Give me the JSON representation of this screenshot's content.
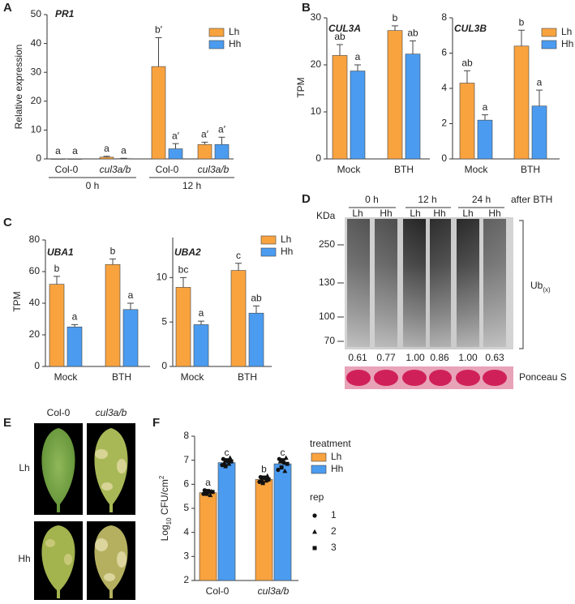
{
  "panels": [
    "A",
    "B",
    "C",
    "D",
    "E",
    "F"
  ],
  "chart_data": [
    {
      "type": "bar",
      "title": "PR1",
      "ylabel": [
        "Relative expression"
      ],
      "ylim": [
        0,
        50
      ],
      "yticks": [
        0,
        10,
        20,
        30,
        40,
        50
      ],
      "categories": [
        "Col-0",
        "cul3a/b",
        "Col-0",
        "cul3a/b"
      ],
      "group_labels": [
        "0 h",
        "12 h"
      ],
      "legend": true,
      "series": [
        {
          "name": "Lh",
          "color": "#f9a33f",
          "values": [
            0,
            0.6,
            32,
            5
          ],
          "errors": [
            0,
            0.3,
            10,
            0.8
          ],
          "letters": [
            "a",
            "a",
            "b′",
            "a′"
          ]
        },
        {
          "name": "Hh",
          "color": "#4b9cf0",
          "values": [
            0,
            0.1,
            3.5,
            5
          ],
          "errors": [
            0,
            0.1,
            1.8,
            2.5
          ],
          "letters": [
            "a",
            "a",
            "a′",
            "a′"
          ]
        }
      ]
    },
    {
      "type": "bar",
      "title": "CUL3A",
      "ylabel": [
        "TPM"
      ],
      "ylim": [
        0,
        30
      ],
      "yticks": [
        0,
        10,
        20,
        30
      ],
      "categories": [
        "Mock",
        "BTH"
      ],
      "legend": false,
      "series": [
        {
          "name": "Lh",
          "color": "#f9a33f",
          "values": [
            22,
            27.3
          ],
          "errors": [
            2.3,
            1
          ],
          "letters": [
            "ab",
            "b"
          ]
        },
        {
          "name": "Hh",
          "color": "#4b9cf0",
          "values": [
            18.7,
            22.3
          ],
          "errors": [
            1.3,
            2.8
          ],
          "letters": [
            "a",
            "ab"
          ]
        }
      ]
    },
    {
      "type": "bar",
      "title": "CUL3B",
      "ylim": [
        0,
        8
      ],
      "yticks": [
        0,
        2,
        4,
        6,
        8
      ],
      "categories": [
        "Mock",
        "BTH"
      ],
      "legend": true,
      "series": [
        {
          "name": "Lh",
          "color": "#f9a33f",
          "values": [
            4.3,
            6.4
          ],
          "errors": [
            0.7,
            0.9
          ],
          "letters": [
            "ab",
            "b"
          ]
        },
        {
          "name": "Hh",
          "color": "#4b9cf0",
          "values": [
            2.2,
            3
          ],
          "errors": [
            0.3,
            0.9
          ],
          "letters": [
            "a",
            "a"
          ]
        }
      ]
    },
    {
      "type": "bar",
      "title": "UBA1",
      "ylabel": [
        "TPM"
      ],
      "ylim": [
        0,
        80
      ],
      "yticks": [
        0,
        20,
        40,
        60,
        80
      ],
      "categories": [
        "Mock",
        "BTH"
      ],
      "legend": false,
      "series": [
        {
          "name": "Lh",
          "color": "#f9a33f",
          "values": [
            52,
            64.5
          ],
          "errors": [
            5,
            3.5
          ],
          "letters": [
            "b",
            "b"
          ]
        },
        {
          "name": "Hh",
          "color": "#4b9cf0",
          "values": [
            25,
            36
          ],
          "errors": [
            1.5,
            4
          ],
          "letters": [
            "a",
            "a"
          ]
        }
      ]
    },
    {
      "type": "bar",
      "title": "UBA2",
      "ylim": [
        0,
        14.5
      ],
      "yticks": [
        0,
        5,
        10
      ],
      "categories": [
        "Mock",
        "BTH"
      ],
      "legend": true,
      "series": [
        {
          "name": "Lh",
          "color": "#f9a33f",
          "values": [
            8.9,
            10.8
          ],
          "errors": [
            1.1,
            0.8
          ],
          "letters": [
            "bc",
            "c"
          ]
        },
        {
          "name": "Hh",
          "color": "#4b9cf0",
          "values": [
            4.7,
            6
          ],
          "errors": [
            0.4,
            0.8
          ],
          "letters": [
            "a",
            "ab"
          ]
        }
      ]
    },
    {
      "type": "bar",
      "ylabel": [
        "Log",
        "10",
        " CFU/cm",
        "2"
      ],
      "ylim": [
        2,
        8
      ],
      "yticks": [
        2,
        3,
        4,
        5,
        6,
        7,
        8
      ],
      "categories": [
        "Col-0",
        "cul3a/b"
      ],
      "legend": true,
      "legend_title": "treatment",
      "rep_legend": {
        "title": "rep",
        "labels": [
          "1",
          "2",
          "3"
        ]
      },
      "series": [
        {
          "name": "Lh",
          "color": "#f9a33f",
          "values": [
            5.65,
            6.2
          ],
          "errors": [
            0.1,
            0.1
          ],
          "letters": [
            "a",
            "b"
          ],
          "points": [
            [
              [
                5.6,
                5.7,
                5.75
              ],
              [
                5.55,
                5.65,
                5.7
              ],
              [
                5.6,
                5.68,
                5.72
              ]
            ],
            [
              [
                6.1,
                6.25,
                6.3
              ],
              [
                6.15,
                6.2,
                6.35
              ],
              [
                6.05,
                6.2,
                6.28
              ]
            ]
          ]
        },
        {
          "name": "Hh",
          "color": "#4b9cf0",
          "values": [
            6.9,
            6.85
          ],
          "errors": [
            0.1,
            0.15
          ],
          "letters": [
            "c",
            "c"
          ],
          "points": [
            [
              [
                6.8,
                6.95,
                7.05
              ],
              [
                6.85,
                6.9,
                7.1
              ],
              [
                6.75,
                6.95,
                7.0
              ]
            ],
            [
              [
                6.6,
                6.9,
                7.05
              ],
              [
                6.55,
                6.95,
                7.1
              ],
              [
                6.7,
                6.85,
                7.0
              ]
            ]
          ]
        }
      ]
    }
  ],
  "blot": {
    "timepoints": [
      "0 h",
      "12 h",
      "24 h"
    ],
    "after": "after BTH",
    "unit": "KDa",
    "lanes": [
      "Lh",
      "Hh",
      "Lh",
      "Hh",
      "Lh",
      "Hh"
    ],
    "markers": [
      "250",
      "130",
      "100",
      "70"
    ],
    "quantification": [
      "0.61",
      "0.77",
      "1.00",
      "0.86",
      "1.00",
      "0.63"
    ],
    "ub_label": [
      "Ub",
      "(x)"
    ],
    "loading": "Ponceau S"
  },
  "leaves": {
    "columns": [
      "Col-0",
      "cul3a/b"
    ],
    "rows": [
      "Lh",
      "Hh"
    ]
  }
}
